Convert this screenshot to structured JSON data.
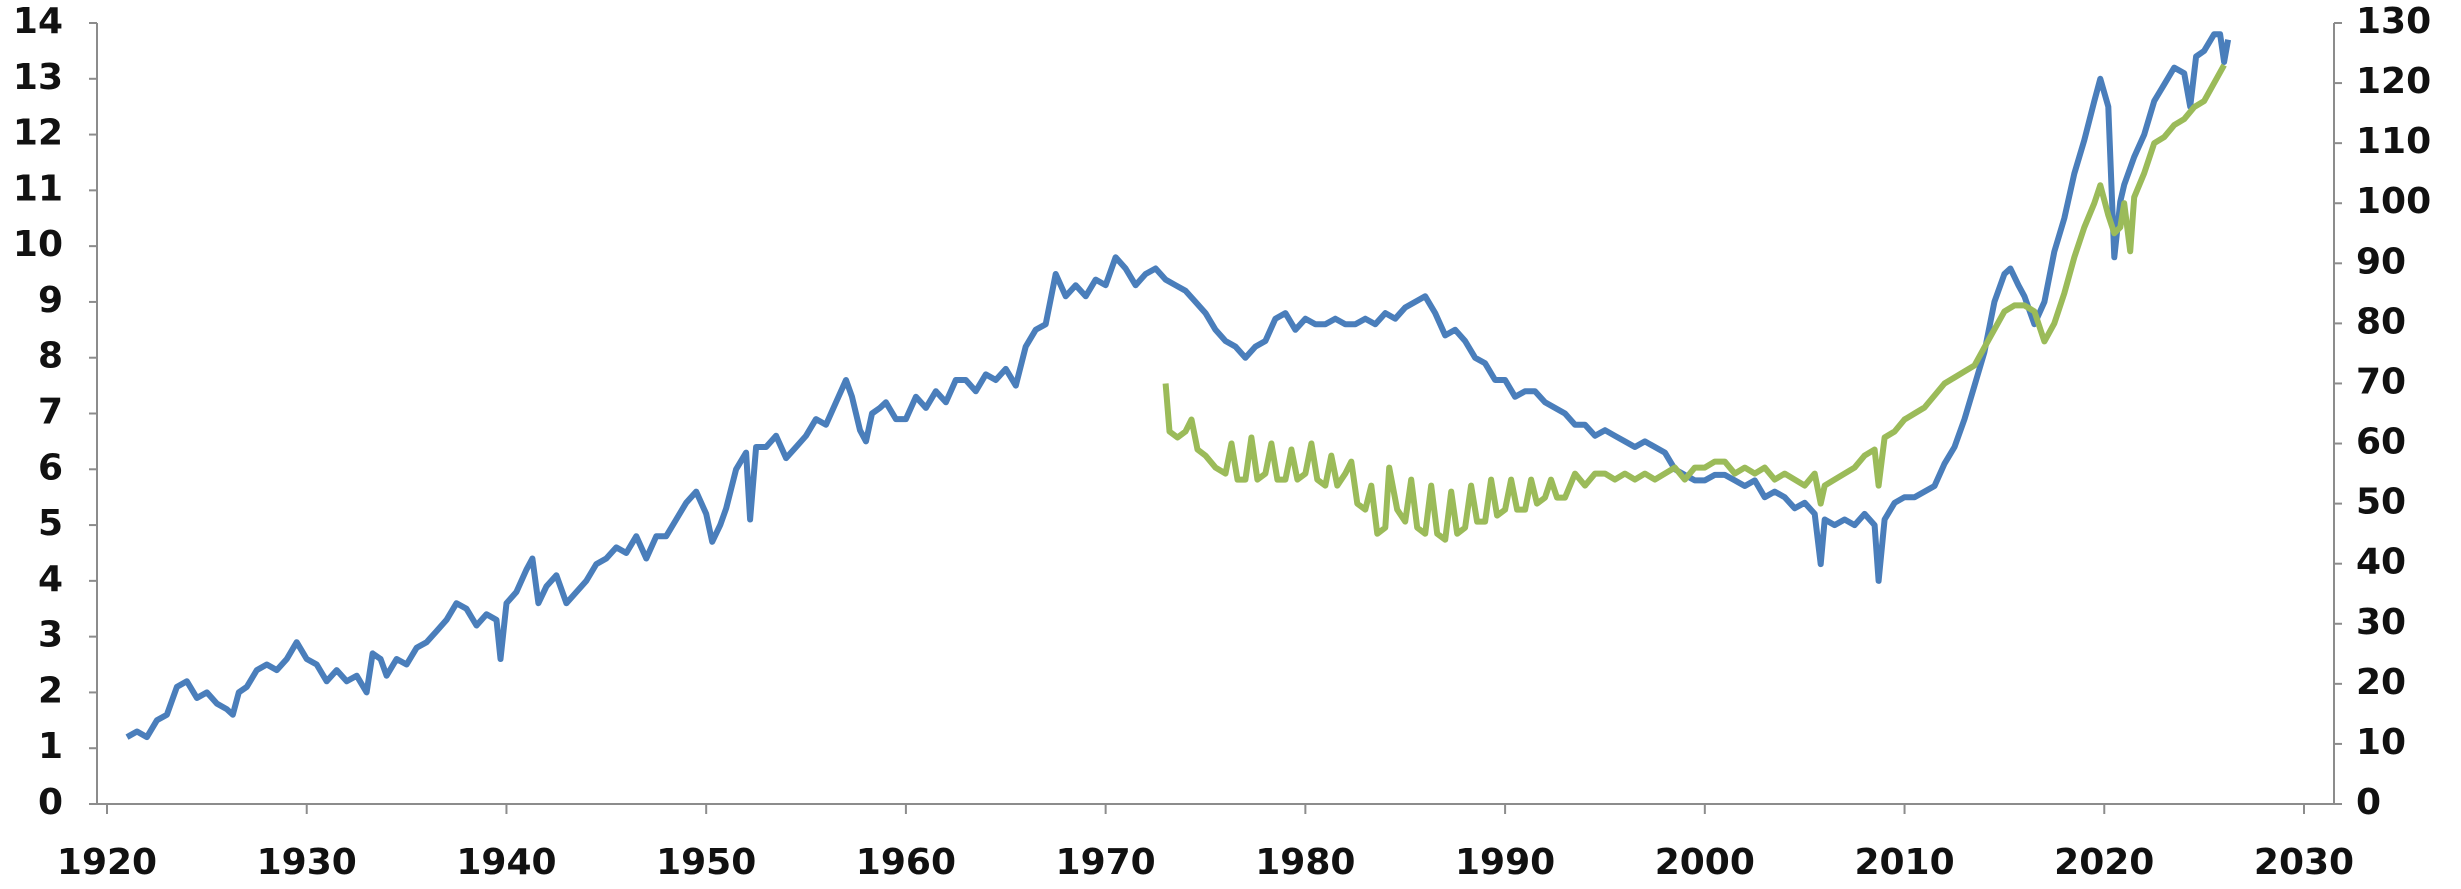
{
  "chart_data": {
    "type": "line",
    "xlim": [
      1920,
      2030
    ],
    "xticks": [
      1920,
      1930,
      1940,
      1950,
      1960,
      1970,
      1980,
      1990,
      2000,
      2010,
      2020,
      2030
    ],
    "ylim": [
      0,
      14
    ],
    "yticks": [
      0,
      1,
      2,
      3,
      4,
      5,
      6,
      7,
      8,
      9,
      10,
      11,
      12,
      13,
      14
    ],
    "y2lim": [
      0,
      130
    ],
    "y2ticks": [
      0,
      10,
      20,
      30,
      40,
      50,
      60,
      70,
      80,
      90,
      100,
      110,
      120,
      130
    ],
    "grid": false,
    "series": [
      {
        "color": "#4a7ebb",
        "x": [
          1921,
          1921.5,
          1922,
          1922.5,
          1923,
          1923.5,
          1924,
          1924.5,
          1925,
          1925.5,
          1926,
          1926.3,
          1926.6,
          1927,
          1927.5,
          1928,
          1928.5,
          1929,
          1929.5,
          1930,
          1930.5,
          1931,
          1931.5,
          1932,
          1932.5,
          1933,
          1933.3,
          1933.7,
          1934,
          1934.5,
          1935,
          1935.5,
          1936,
          1936.5,
          1937,
          1937.5,
          1938,
          1938.5,
          1939,
          1939.5,
          1939.7,
          1940,
          1940.5,
          1941,
          1941.3,
          1941.6,
          1942,
          1942.5,
          1943,
          1943.5,
          1944,
          1944.5,
          1945,
          1945.5,
          1946,
          1946.5,
          1947,
          1947.5,
          1948,
          1948.5,
          1949,
          1949.5,
          1950,
          1950.3,
          1950.7,
          1951,
          1951.5,
          1952,
          1952.2,
          1952.5,
          1953,
          1953.5,
          1954,
          1954.5,
          1955,
          1955.5,
          1956,
          1956.5,
          1957,
          1957.3,
          1957.7,
          1958,
          1958.3,
          1958.7,
          1959,
          1959.5,
          1960,
          1960.5,
          1961,
          1961.5,
          1962,
          1962.5,
          1963,
          1963.5,
          1964,
          1964.5,
          1965,
          1965.5,
          1966,
          1966.5,
          1967,
          1967.5,
          1968,
          1968.5,
          1969,
          1969.5,
          1970,
          1970.5,
          1971,
          1971.5,
          1972,
          1972.5,
          1973,
          1973.5,
          1974,
          1974.5,
          1975,
          1975.5,
          1976,
          1976.5,
          1977,
          1977.5,
          1978,
          1978.5,
          1979,
          1979.5,
          1980,
          1980.5,
          1981,
          1981.5,
          1982,
          1982.5,
          1983,
          1983.5,
          1984,
          1984.5,
          1985,
          1985.5,
          1986,
          1986.5,
          1987,
          1987.5,
          1988,
          1988.5,
          1989,
          1989.5,
          1990,
          1990.5,
          1991,
          1991.5,
          1992,
          1992.5,
          1993,
          1993.5,
          1994,
          1994.5,
          1995,
          1995.5,
          1996,
          1996.5,
          1997,
          1997.5,
          1998,
          1998.5,
          1999,
          1999.5,
          2000,
          2000.5,
          2001,
          2001.5,
          2002,
          2002.5,
          2003,
          2003.5,
          2004,
          2004.5,
          2005,
          2005.5,
          2005.8,
          2006,
          2006.5,
          2007,
          2007.5,
          2008,
          2008.5,
          2008.7,
          2009,
          2009.5,
          2010,
          2010.5,
          2011,
          2011.5,
          2012,
          2012.5,
          2013,
          2013.5,
          2014,
          2014.5,
          2015,
          2015.3,
          2015.7,
          2016,
          2016.5,
          2017,
          2017.5,
          2018,
          2018.5,
          2019,
          2019.5,
          2019.8,
          2020.2,
          2020.5,
          2020.8,
          2021,
          2021.5,
          2022,
          2022.5,
          2023,
          2023.5,
          2024,
          2024.3,
          2024.6,
          2025,
          2025.5,
          2025.8,
          2026,
          2026.2
        ],
        "values": [
          1.2,
          1.3,
          1.2,
          1.5,
          1.6,
          2.1,
          2.2,
          1.9,
          2.0,
          1.8,
          1.7,
          1.6,
          2.0,
          2.1,
          2.4,
          2.5,
          2.4,
          2.6,
          2.9,
          2.6,
          2.5,
          2.2,
          2.4,
          2.2,
          2.3,
          2.0,
          2.7,
          2.6,
          2.3,
          2.6,
          2.5,
          2.8,
          2.9,
          3.1,
          3.3,
          3.6,
          3.5,
          3.2,
          3.4,
          3.3,
          2.6,
          3.6,
          3.8,
          4.2,
          4.4,
          3.6,
          3.9,
          4.1,
          3.6,
          3.8,
          4.0,
          4.3,
          4.4,
          4.6,
          4.5,
          4.8,
          4.4,
          4.8,
          4.8,
          5.1,
          5.4,
          5.6,
          5.2,
          4.7,
          5.0,
          5.3,
          6.0,
          6.3,
          5.1,
          6.4,
          6.4,
          6.6,
          6.2,
          6.4,
          6.6,
          6.9,
          6.8,
          7.2,
          7.6,
          7.3,
          6.7,
          6.5,
          7.0,
          7.1,
          7.2,
          6.9,
          6.9,
          7.3,
          7.1,
          7.4,
          7.2,
          7.6,
          7.6,
          7.4,
          7.7,
          7.6,
          7.8,
          7.5,
          8.2,
          8.5,
          8.6,
          9.5,
          9.1,
          9.3,
          9.1,
          9.4,
          9.3,
          9.8,
          9.6,
          9.3,
          9.5,
          9.6,
          9.4,
          9.3,
          9.2,
          9.0,
          8.8,
          8.5,
          8.3,
          8.2,
          8.0,
          8.2,
          8.3,
          8.7,
          8.8,
          8.5,
          8.7,
          8.6,
          8.6,
          8.7,
          8.6,
          8.6,
          8.7,
          8.6,
          8.8,
          8.7,
          8.9,
          9.0,
          9.1,
          8.8,
          8.4,
          8.5,
          8.3,
          8.0,
          7.9,
          7.6,
          7.6,
          7.3,
          7.4,
          7.4,
          7.2,
          7.1,
          7.0,
          6.8,
          6.8,
          6.6,
          6.7,
          6.6,
          6.5,
          6.4,
          6.5,
          6.4,
          6.3,
          6.0,
          5.9,
          5.8,
          5.8,
          5.9,
          5.9,
          5.8,
          5.7,
          5.8,
          5.5,
          5.6,
          5.5,
          5.3,
          5.4,
          5.2,
          4.3,
          5.1,
          5.0,
          5.1,
          5.0,
          5.2,
          5.0,
          4.0,
          5.1,
          5.4,
          5.5,
          5.5,
          5.6,
          5.7,
          6.1,
          6.4,
          6.9,
          7.5,
          8.1,
          9.0,
          9.5,
          9.6,
          9.3,
          9.1,
          8.6,
          9.0,
          9.9,
          10.5,
          11.3,
          11.9,
          12.6,
          13.0,
          12.5,
          9.8,
          10.8,
          11.1,
          11.6,
          12.0,
          12.6,
          12.9,
          13.2,
          13.1,
          12.5,
          13.4,
          13.5,
          13.8,
          13.8,
          13.3,
          13.7
        ]
      },
      {
        "color": "#9bbb59",
        "axis": "y2",
        "x": [
          1973,
          1973.2,
          1973.6,
          1974,
          1974.3,
          1974.6,
          1975,
          1975.5,
          1976,
          1976.3,
          1976.6,
          1977,
          1977.3,
          1977.6,
          1978,
          1978.3,
          1978.6,
          1979,
          1979.3,
          1979.6,
          1980,
          1980.3,
          1980.6,
          1981,
          1981.3,
          1981.6,
          1982,
          1982.3,
          1982.6,
          1983,
          1983.3,
          1983.6,
          1984,
          1984.2,
          1984.6,
          1985,
          1985.3,
          1985.6,
          1986,
          1986.3,
          1986.6,
          1987,
          1987.3,
          1987.6,
          1988,
          1988.3,
          1988.6,
          1989,
          1989.3,
          1989.6,
          1990,
          1990.3,
          1990.6,
          1991,
          1991.3,
          1991.6,
          1992,
          1992.3,
          1992.6,
          1993,
          1993.5,
          1994,
          1994.5,
          1995,
          1995.5,
          1996,
          1996.5,
          1997,
          1997.5,
          1998,
          1998.5,
          1999,
          1999.5,
          2000,
          2000.5,
          2001,
          2001.5,
          2002,
          2002.5,
          2003,
          2003.5,
          2004,
          2004.5,
          2005,
          2005.5,
          2005.8,
          2006,
          2006.5,
          2007,
          2007.5,
          2008,
          2008.5,
          2008.7,
          2009,
          2009.5,
          2010,
          2010.5,
          2011,
          2011.5,
          2012,
          2012.5,
          2013,
          2013.5,
          2014,
          2014.5,
          2015,
          2015.5,
          2016,
          2016.5,
          2017,
          2017.5,
          2018,
          2018.5,
          2019,
          2019.5,
          2019.8,
          2020.2,
          2020.5,
          2020.8,
          2021,
          2021.3,
          2021.5,
          2022,
          2022.5,
          2023,
          2023.5,
          2024,
          2024.5,
          2025,
          2025.5,
          2026
        ],
        "values": [
          70,
          62,
          61,
          62,
          64,
          59,
          58,
          56,
          55,
          60,
          54,
          54,
          61,
          54,
          55,
          60,
          54,
          54,
          59,
          54,
          55,
          60,
          54,
          53,
          58,
          53,
          55,
          57,
          50,
          49,
          53,
          45,
          46,
          56,
          49,
          47,
          54,
          46,
          45,
          53,
          45,
          44,
          52,
          45,
          46,
          53,
          47,
          47,
          54,
          48,
          49,
          54,
          49,
          49,
          54,
          50,
          51,
          54,
          51,
          51,
          55,
          53,
          55,
          55,
          54,
          55,
          54,
          55,
          54,
          55,
          56,
          54,
          56,
          56,
          57,
          57,
          55,
          56,
          55,
          56,
          54,
          55,
          54,
          53,
          55,
          50,
          53,
          54,
          55,
          56,
          58,
          59,
          53,
          61,
          62,
          64,
          65,
          66,
          68,
          70,
          71,
          72,
          73,
          76,
          79,
          82,
          83,
          83,
          82,
          77,
          80,
          85,
          91,
          96,
          100,
          103,
          98,
          95,
          96,
          100,
          92,
          101,
          105,
          110,
          111,
          113,
          114,
          116,
          117,
          120,
          123
        ]
      }
    ]
  }
}
